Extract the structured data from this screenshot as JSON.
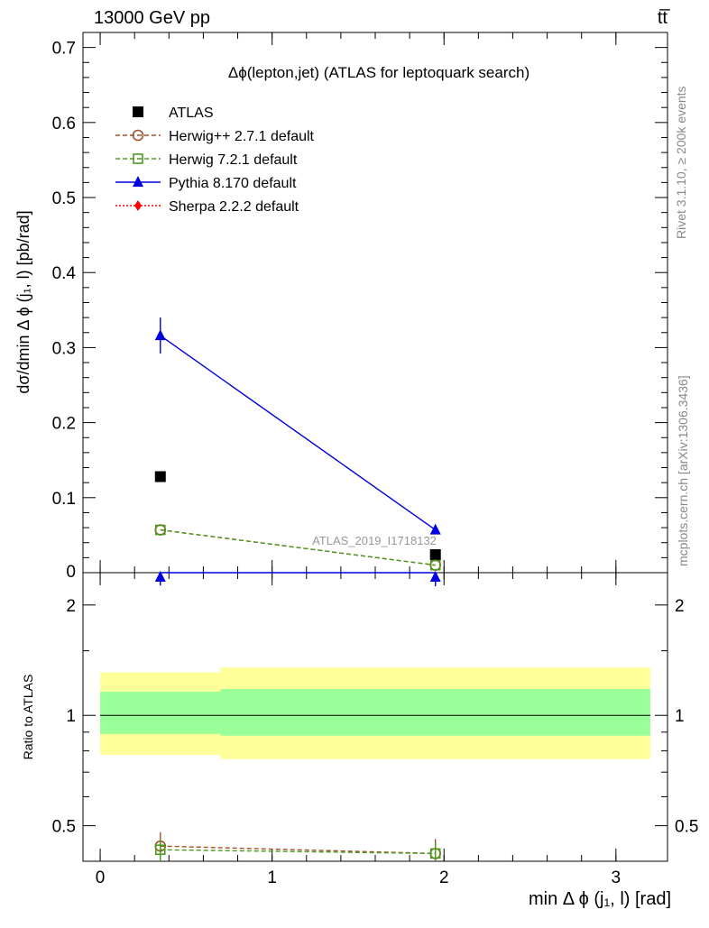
{
  "header": {
    "energy_label": "13000 GeV pp",
    "process_label": "tt̅"
  },
  "side": {
    "rivet_label": "Rivet 3.1.10, ≥ 200k events",
    "mcplots_label": "mcplots.cern.ch [arXiv:1306.3436]"
  },
  "colors": {
    "atlas": "#000000",
    "herwigpp": "#a0522d",
    "herwig7": "#4a9a1e",
    "pythia": "#0000e0",
    "sherpa": "#ff0000",
    "band_inner": "#99ff99",
    "band_outer": "#ffff99"
  },
  "chart_data": [
    {
      "type": "line",
      "title": "Δϕ(lepton,jet) (ATLAS for leptoquark search)",
      "ylabel": "dσ/dmin Δ ϕ (j₁, l) [pb/rad]",
      "watermark": "ATLAS_2019_I1718132",
      "xlim": [
        -0.1,
        3.3
      ],
      "ylim": [
        0,
        0.72
      ],
      "yticks": [
        {
          "v": 0.1,
          "label": "0.1"
        },
        {
          "v": 0.2,
          "label": "0.2"
        },
        {
          "v": 0.3,
          "label": "0.3"
        },
        {
          "v": 0.4,
          "label": "0.4"
        },
        {
          "v": 0.5,
          "label": "0.5"
        },
        {
          "v": 0.6,
          "label": "0.6"
        },
        {
          "v": 0.7,
          "label": "0.7"
        }
      ],
      "yzero_label": "0",
      "legend_position": "top-left",
      "series": [
        {
          "name": "ATLAS",
          "key": "atlas",
          "marker": "square",
          "style": "none",
          "points": [
            {
              "x": 0.35,
              "y": 0.128
            },
            {
              "x": 1.95,
              "y": 0.024
            }
          ]
        },
        {
          "name": "Herwig++ 2.7.1 default",
          "key": "herwigpp",
          "marker": "open-circle",
          "style": "dashed",
          "points": [
            {
              "x": 0.35,
              "y": 0.057
            },
            {
              "x": 1.95,
              "y": 0.01
            }
          ]
        },
        {
          "name": "Herwig 7.2.1 default",
          "key": "herwig7",
          "marker": "open-square",
          "style": "dashed",
          "points": [
            {
              "x": 0.35,
              "y": 0.057
            },
            {
              "x": 1.95,
              "y": 0.01
            }
          ]
        },
        {
          "name": "Pythia 8.170 default",
          "key": "pythia",
          "marker": "triangle",
          "style": "solid",
          "points": [
            {
              "x": 0.35,
              "y": 0.316,
              "err": 0.024
            },
            {
              "x": 1.95,
              "y": 0.057,
              "err": 0.004
            }
          ]
        },
        {
          "name": "Sherpa 2.2.2 default",
          "key": "sherpa",
          "marker": "diamond",
          "style": "dotted",
          "points": []
        }
      ]
    },
    {
      "type": "line",
      "ylabel": "Ratio to ATLAS",
      "xlabel": "min Δ ϕ (j₁, l) [rad]",
      "scale": "log",
      "xlim": [
        -0.1,
        3.3
      ],
      "ylim": [
        0.4,
        2.45
      ],
      "xticks": [
        {
          "v": 0,
          "label": "0"
        },
        {
          "v": 1,
          "label": "1"
        },
        {
          "v": 2,
          "label": "2"
        },
        {
          "v": 3,
          "label": "3"
        }
      ],
      "yticks": [
        {
          "v": 0.5,
          "label": "0.5"
        },
        {
          "v": 1,
          "label": "1"
        },
        {
          "v": 2,
          "label": "2"
        }
      ],
      "bands": [
        {
          "x0": 0.0,
          "x1": 0.7,
          "inner": [
            0.89,
            1.16
          ],
          "outer": [
            0.78,
            1.31
          ]
        },
        {
          "x0": 0.7,
          "x1": 3.2,
          "inner": [
            0.88,
            1.18
          ],
          "outer": [
            0.76,
            1.35
          ]
        }
      ],
      "series": [
        {
          "key": "herwigpp",
          "marker": "open-circle",
          "style": "dashed",
          "points": [
            {
              "x": 0.35,
              "y": 0.44,
              "err": 0.04
            },
            {
              "x": 1.95,
              "y": 0.42,
              "err": 0.04
            }
          ]
        },
        {
          "key": "herwig7",
          "marker": "open-square",
          "style": "dashed",
          "points": [
            {
              "x": 0.35,
              "y": 0.43,
              "err": 0.03
            },
            {
              "x": 1.95,
              "y": 0.42,
              "err": 0.03
            }
          ]
        },
        {
          "key": "pythia",
          "marker": "triangle",
          "style": "solid",
          "points": [
            {
              "x": 0.35,
              "y": 2.46,
              "err": 0.2
            },
            {
              "x": 1.95,
              "y": 2.45,
              "err": 0.2
            }
          ]
        }
      ]
    }
  ]
}
